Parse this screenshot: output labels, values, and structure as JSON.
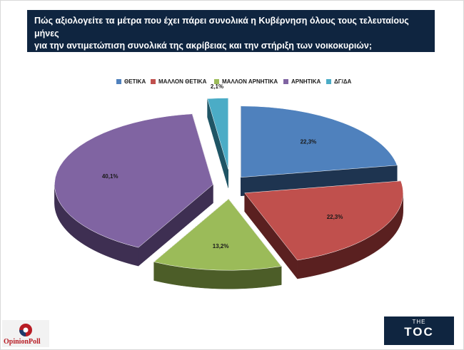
{
  "title": {
    "line1": "Πώς αξιολογείτε τα μέτρα που έχει πάρει συνολικά η Κυβέρνηση όλους τους τελευταίους μήνες",
    "line2": "για την αντιμετώπιση συνολικά της ακρίβειας και την στήριξη των νοικοκυριών;"
  },
  "chart_data": {
    "type": "pie",
    "categories": [
      "ΘΕΤΙΚΑ",
      "ΜΑΛΛΟΝ ΘΕΤΙΚΑ",
      "ΜΑΛΛΟΝ ΑΡΝΗΤΙΚΑ",
      "ΑΡΝΗΤΙΚΑ",
      "ΔΓ/ΔΑ"
    ],
    "values": [
      22.3,
      22.3,
      13.2,
      40.1,
      2.1
    ],
    "labels": [
      "22,3%",
      "22,3%",
      "13,2%",
      "40,1%",
      "2,1%"
    ],
    "colors": [
      "#4f81bd",
      "#c0504d",
      "#9bbb59",
      "#8064a2",
      "#4bacc6"
    ],
    "side_colors": [
      "#1e3450",
      "#5a2020",
      "#4c5d28",
      "#3e2f52",
      "#1f5565"
    ],
    "exploded": true,
    "style": "3d",
    "legend_position": "top"
  },
  "logos": {
    "opinion": "OpinionPoll",
    "toc_small": "THE",
    "toc_big": "TOC"
  }
}
